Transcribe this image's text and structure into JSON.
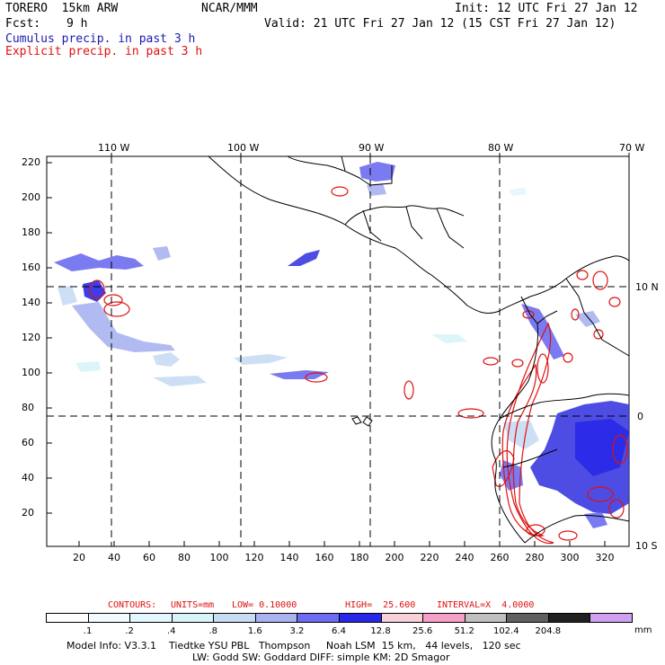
{
  "header": {
    "model": "TORERO  15km ARW",
    "center": "NCAR/MMM",
    "init": "Init: 12 UTC Fri 27 Jan 12",
    "fcst_label": "Fcst:",
    "fcst_value": "9 h",
    "valid": "Valid: 21 UTC Fri 27 Jan 12 (15 CST Fri 27 Jan 12)",
    "field1": "Cumulus precip. in past 3 h",
    "field2": "Explicit precip. in past 3 h"
  },
  "map": {
    "lon_labels": [
      "110 W",
      "100 W",
      "90 W",
      "80 W",
      "70 W"
    ],
    "lat_labels": [
      "10 N",
      "0",
      "10 S"
    ],
    "y_ticks": [
      "220",
      "200",
      "180",
      "160",
      "140",
      "120",
      "100",
      "80",
      "60",
      "40",
      "20"
    ],
    "x_ticks": [
      "20",
      "40",
      "60",
      "80",
      "100",
      "120",
      "140",
      "160",
      "180",
      "200",
      "220",
      "240",
      "260",
      "280",
      "300",
      "320"
    ],
    "grid_lines": "dashed",
    "colors": {
      "cumulus": "#3a3ae0",
      "explicit": "#e01010",
      "coast": "#000000"
    }
  },
  "contours": {
    "label": "CONTOURS:",
    "units": "UNITS=mm",
    "low": "LOW= 0.10000",
    "high": "HIGH=  25.600",
    "interval": "INTERVAL=X  4.0000"
  },
  "colorbar": {
    "colors": [
      "#ffffff",
      "#f3fbff",
      "#e4f6ff",
      "#d8f4f8",
      "#c8dcf4",
      "#a8b4f0",
      "#6c6cf0",
      "#2828e8",
      "#f8d0d8",
      "#f4a0c8",
      "#c0c0c0",
      "#606060",
      "#202020",
      "#d0a0f0"
    ],
    "labels": [
      ".1",
      ".2",
      ".4",
      ".8",
      "1.6",
      "3.2",
      "6.4",
      "12.8",
      "25.6",
      "51.2",
      "102.4",
      "204.8"
    ],
    "unit": "mm"
  },
  "footer": {
    "line1": "Model Info: V3.3.1    Tiedtke YSU PBL   Thompson     Noah LSM  15 km,   44 levels,   120 sec",
    "line2": "LW: Godd SW: Goddard DIFF: simple KM: 2D Smagor"
  }
}
